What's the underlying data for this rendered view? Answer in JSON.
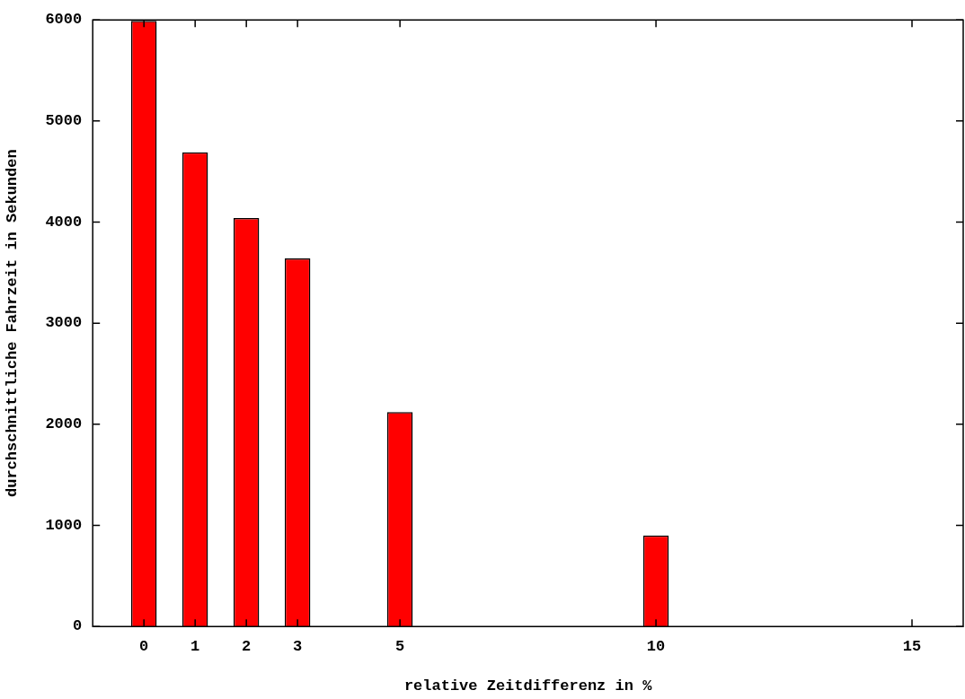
{
  "chart_data": {
    "type": "bar",
    "xlabel": "relative Zeitdifferenz in %",
    "ylabel": "durchschnittliche Fahrzeit in Sekunden",
    "x": [
      0,
      1,
      2,
      3,
      5,
      10
    ],
    "values": [
      5990,
      4690,
      4040,
      3640,
      2120,
      900
    ],
    "color": "#ff0000",
    "xlim": [
      -1,
      16
    ],
    "xticks": [
      0,
      1,
      2,
      3,
      5,
      10,
      15
    ],
    "ylim": [
      0,
      6000
    ],
    "yticks": [
      0,
      1000,
      2000,
      3000,
      4000,
      5000,
      6000
    ],
    "grid": false,
    "legend": false
  }
}
